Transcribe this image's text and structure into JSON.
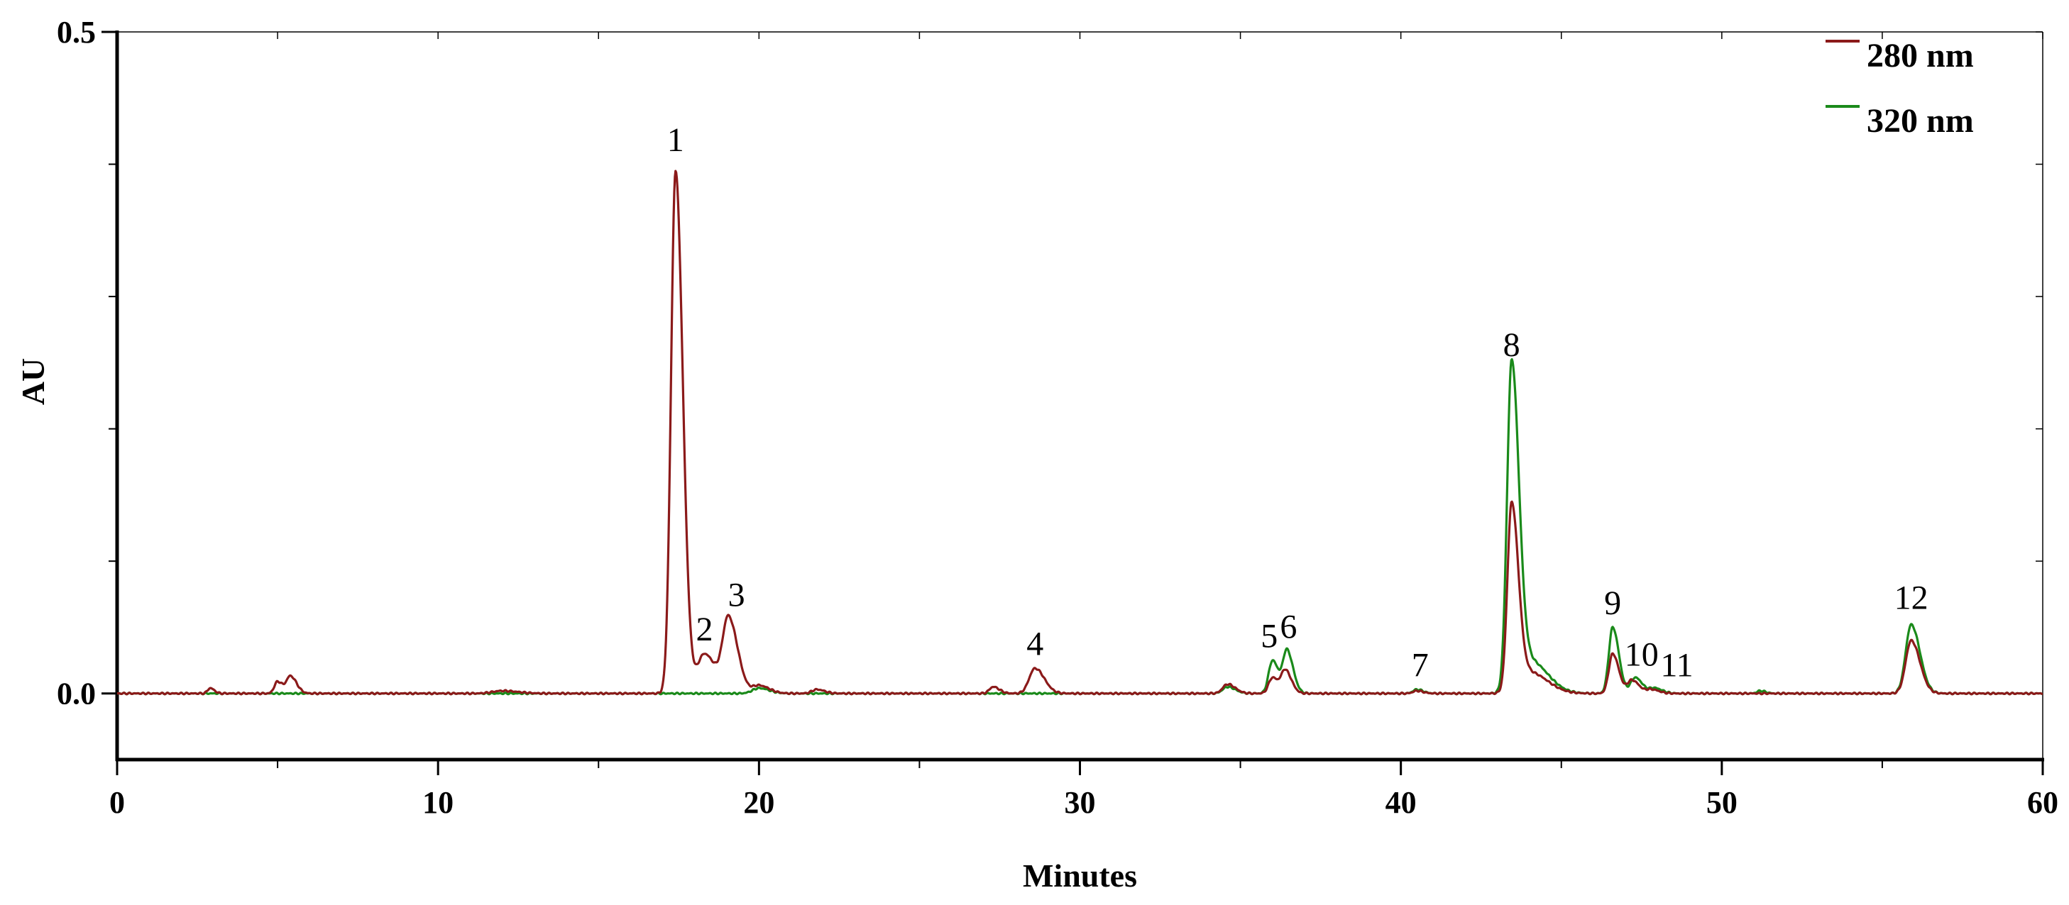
{
  "chart_data": {
    "type": "line",
    "title": "",
    "xlabel": "Minutes",
    "ylabel": "AU",
    "xlim": [
      0,
      60
    ],
    "ylim": [
      -0.05,
      0.5
    ],
    "x_ticks": [
      "0",
      "10",
      "20",
      "30",
      "40",
      "50",
      "60"
    ],
    "y_ticks": [
      "0.0",
      "0.5"
    ],
    "grid": false,
    "legend": "top-right",
    "series": [
      {
        "name": "280 nm",
        "color": "#8b1a1a",
        "peaks": [
          {
            "t": 2.9,
            "h": 0.004,
            "w": 0.08
          },
          {
            "t": 5.0,
            "h": 0.009,
            "w": 0.1
          },
          {
            "t": 5.4,
            "h": 0.013,
            "w": 0.12
          },
          {
            "t": 12.0,
            "h": 0.002,
            "w": 0.3
          },
          {
            "t": 17.4,
            "h": 0.395,
            "w": 0.14
          },
          {
            "t": 18.3,
            "h": 0.03,
            "w": 0.22
          },
          {
            "t": 19.05,
            "h": 0.056,
            "w": 0.18
          },
          {
            "t": 20.0,
            "h": 0.006,
            "w": 0.2
          },
          {
            "t": 21.8,
            "h": 0.003,
            "w": 0.15
          },
          {
            "t": 27.3,
            "h": 0.005,
            "w": 0.12
          },
          {
            "t": 28.6,
            "h": 0.019,
            "w": 0.18
          },
          {
            "t": 34.6,
            "h": 0.007,
            "w": 0.15
          },
          {
            "t": 36.0,
            "h": 0.012,
            "w": 0.12
          },
          {
            "t": 36.4,
            "h": 0.017,
            "w": 0.12
          },
          {
            "t": 40.5,
            "h": 0.002,
            "w": 0.12
          },
          {
            "t": 43.45,
            "h": 0.14,
            "w": 0.13
          },
          {
            "t": 44.0,
            "h": 0.016,
            "w": 0.35
          },
          {
            "t": 46.6,
            "h": 0.03,
            "w": 0.12
          },
          {
            "t": 47.2,
            "h": 0.01,
            "w": 0.14
          },
          {
            "t": 47.8,
            "h": 0.003,
            "w": 0.15
          },
          {
            "t": 55.9,
            "h": 0.04,
            "w": 0.17
          }
        ]
      },
      {
        "name": "320 nm",
        "color": "#1a8a1a",
        "peaks": [
          {
            "t": 20.0,
            "h": 0.004,
            "w": 0.2
          },
          {
            "t": 34.6,
            "h": 0.005,
            "w": 0.15
          },
          {
            "t": 36.0,
            "h": 0.025,
            "w": 0.12
          },
          {
            "t": 36.45,
            "h": 0.032,
            "w": 0.12
          },
          {
            "t": 40.5,
            "h": 0.003,
            "w": 0.12
          },
          {
            "t": 43.45,
            "h": 0.245,
            "w": 0.14
          },
          {
            "t": 44.0,
            "h": 0.025,
            "w": 0.35
          },
          {
            "t": 46.6,
            "h": 0.05,
            "w": 0.12
          },
          {
            "t": 47.3,
            "h": 0.012,
            "w": 0.14
          },
          {
            "t": 47.9,
            "h": 0.004,
            "w": 0.15
          },
          {
            "t": 51.2,
            "h": 0.002,
            "w": 0.1
          },
          {
            "t": 55.9,
            "h": 0.052,
            "w": 0.17
          }
        ]
      }
    ],
    "annotations": [
      {
        "text": "1",
        "x": 17.4,
        "y": 0.41
      },
      {
        "text": "2",
        "x": 18.3,
        "y": 0.04
      },
      {
        "text": "3",
        "x": 19.3,
        "y": 0.066
      },
      {
        "text": "4",
        "x": 28.6,
        "y": 0.029
      },
      {
        "text": "5",
        "x": 35.9,
        "y": 0.035
      },
      {
        "text": "6",
        "x": 36.5,
        "y": 0.042
      },
      {
        "text": "7",
        "x": 40.6,
        "y": 0.013
      },
      {
        "text": "8",
        "x": 43.45,
        "y": 0.255
      },
      {
        "text": "9",
        "x": 46.6,
        "y": 0.06
      },
      {
        "text": "10",
        "x": 47.5,
        "y": 0.021
      },
      {
        "text": "11",
        "x": 48.6,
        "y": 0.013
      },
      {
        "text": "12",
        "x": 55.9,
        "y": 0.064
      }
    ]
  }
}
